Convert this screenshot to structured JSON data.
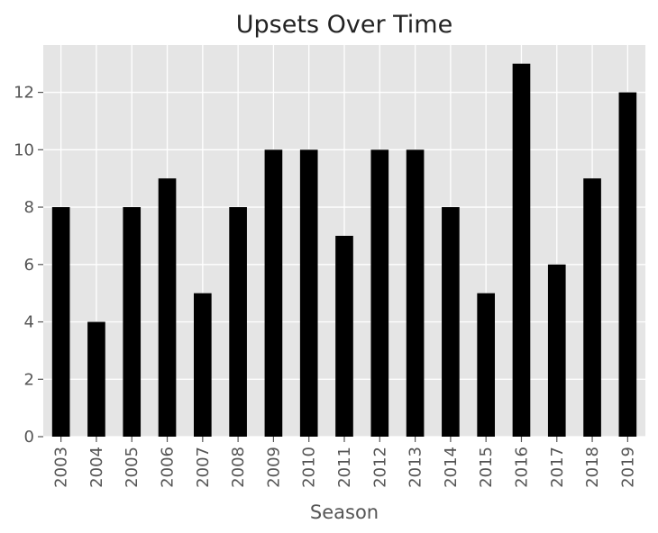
{
  "chart_data": {
    "type": "bar",
    "title": "Upsets Over Time",
    "xlabel": "Season",
    "ylabel": "",
    "categories": [
      "2003",
      "2004",
      "2005",
      "2006",
      "2007",
      "2008",
      "2009",
      "2010",
      "2011",
      "2012",
      "2013",
      "2014",
      "2015",
      "2016",
      "2017",
      "2018",
      "2019"
    ],
    "values": [
      8,
      4,
      8,
      9,
      5,
      8,
      10,
      10,
      7,
      10,
      10,
      8,
      5,
      13,
      6,
      9,
      12
    ],
    "ylim": [
      0,
      13.65
    ],
    "yticks": [
      0,
      2,
      4,
      6,
      8,
      10,
      12
    ],
    "grid": true,
    "legend": "none",
    "colors": {
      "bar": "#000000",
      "plot_background": "#e5e5e5",
      "grid": "#ffffff",
      "text": "#555555",
      "title": "#222222"
    }
  }
}
